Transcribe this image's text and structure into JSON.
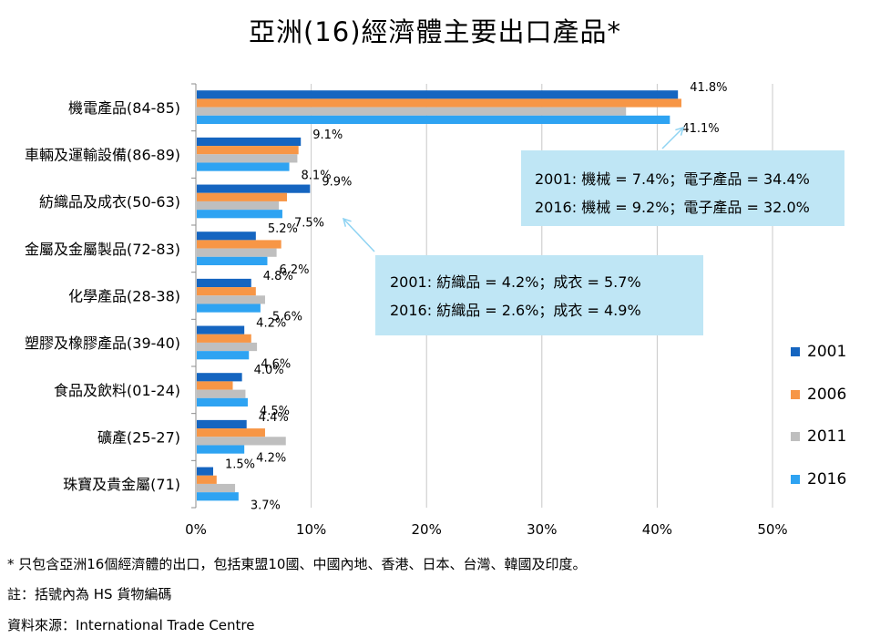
{
  "chart_data": {
    "type": "bar",
    "orientation": "horizontal",
    "title": "亞洲(16)經濟體主要出口產品*",
    "categories": [
      "機電產品(84-85)",
      "車輛及運輸設備(86-89)",
      "紡織品及成衣(50-63)",
      "金屬及金屬製品(72-83)",
      "化學產品(28-38)",
      "塑膠及橡膠產品(39-40)",
      "食品及飲料(01-24)",
      "礦產(25-27)",
      "珠寶及貴金屬(71)"
    ],
    "series": [
      {
        "name": "2001",
        "color": "#1565c0",
        "values": [
          41.8,
          9.1,
          9.9,
          5.2,
          4.8,
          4.2,
          4.0,
          4.4,
          1.5
        ]
      },
      {
        "name": "2006",
        "color": "#f79646",
        "values": [
          42.1,
          8.9,
          7.9,
          7.4,
          5.2,
          4.8,
          3.2,
          6.0,
          1.8
        ]
      },
      {
        "name": "2011",
        "color": "#bfbfbf",
        "values": [
          37.3,
          8.8,
          7.2,
          7.0,
          6.0,
          5.3,
          4.3,
          7.8,
          3.4
        ]
      },
      {
        "name": "2016",
        "color": "#2ea3f2",
        "values": [
          41.1,
          8.1,
          7.5,
          6.2,
          5.6,
          4.6,
          4.5,
          4.2,
          3.7
        ]
      }
    ],
    "data_labels": {
      "2001": [
        "41.8%",
        "9.1%",
        "9.9%",
        "5.2%",
        "4.8%",
        "4.2%",
        "4.0%",
        "4.4%",
        "1.5%"
      ],
      "2016": [
        "41.1%",
        "8.1%",
        "7.5%",
        "6.2%",
        "5.6%",
        "4.6%",
        "4.5%",
        "4.2%",
        "3.7%"
      ]
    },
    "xlim": [
      0,
      50
    ],
    "xticks": [
      0,
      10,
      20,
      30,
      40,
      50
    ],
    "xtick_labels": [
      "0%",
      "10%",
      "20%",
      "30%",
      "40%",
      "50%"
    ],
    "grid": "vertical",
    "legend_position": "right",
    "annotations": [
      {
        "lines": [
          "2001: 機械 = 7.4%；電子產品 = 34.4%",
          "2016: 機械 = 9.2%；電子產品 = 32.0%"
        ]
      },
      {
        "lines": [
          "2001: 紡織品 = 4.2%；成衣 = 5.7%",
          "2016: 紡織品 =  2.6%；成衣 = 4.9%"
        ]
      }
    ]
  },
  "footnotes": [
    "* 只包含亞洲16個經濟體的出口，包括東盟10國、中國內地、香港、日本、台灣、韓國及印度。",
    "註：括號內為 HS 貨物編碼",
    "資料來源：International Trade Centre"
  ]
}
